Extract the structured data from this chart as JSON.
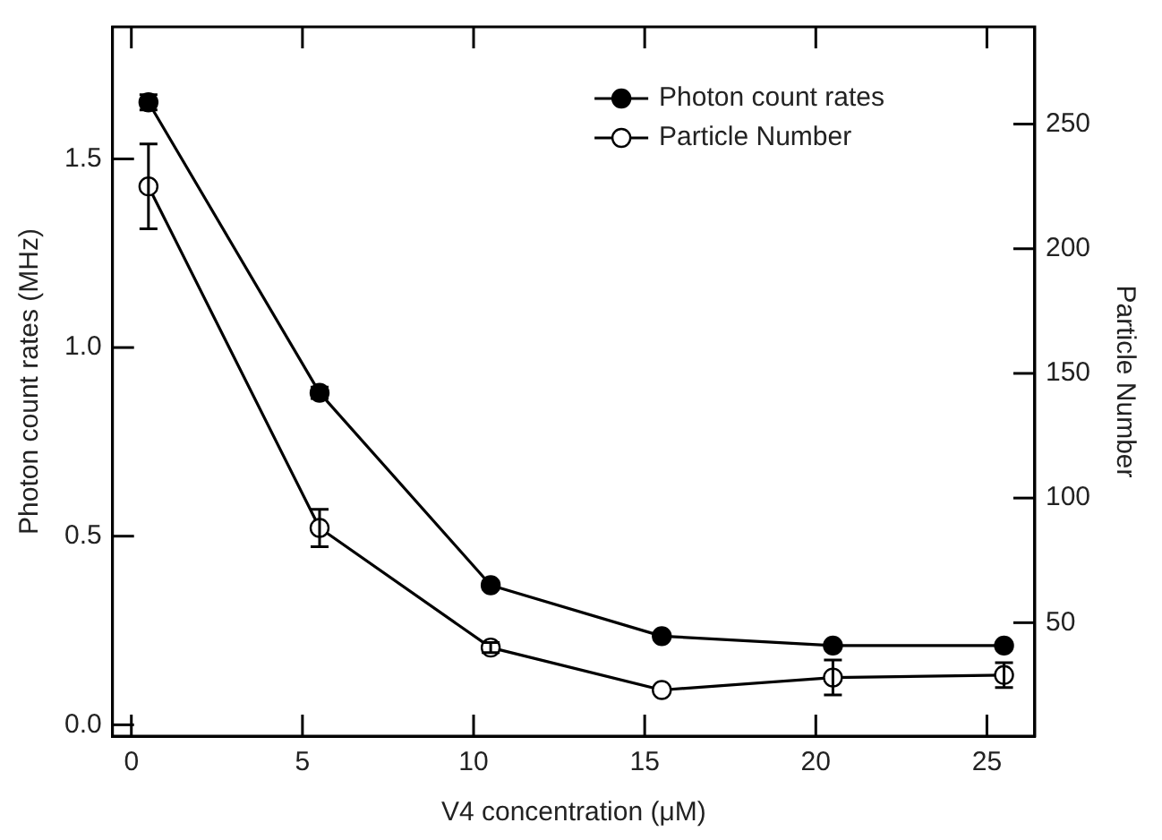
{
  "chart_data": {
    "type": "line",
    "xlabel": "V4 concentration (μM)",
    "ylabel": "Photon count rates (MHz)",
    "y2label": "Particle Number",
    "x": [
      0.5,
      5.5,
      10.5,
      15.5,
      20.5,
      25.5
    ],
    "series": [
      {
        "name": "Photon count rates",
        "color": "#000000",
        "values": [
          1.65,
          0.88,
          0.37,
          0.235,
          0.21,
          0.21
        ],
        "errors": [
          0.02,
          0.015,
          0.01,
          null,
          null,
          null
        ]
      },
      {
        "name": "Particle Number",
        "color": "#000000",
        "axis": "y2",
        "values": [
          225,
          88,
          40,
          23,
          28,
          29
        ],
        "errors": [
          17,
          7.5,
          2,
          null,
          7,
          5
        ]
      }
    ],
    "xlim": [
      -0.55,
      26.4
    ],
    "xticks": [
      0,
      5,
      10,
      15,
      20,
      25
    ],
    "ylim": [
      -0.03,
      1.85
    ],
    "yticks": [
      {
        "value": 0,
        "label": "0.0"
      },
      {
        "value": 0.5,
        "label": "0.5"
      },
      {
        "value": 1,
        "label": "1.0"
      },
      {
        "value": 1.5,
        "label": "1.5"
      }
    ],
    "y2lim": [
      4.5,
      289
    ],
    "y2ticks": [
      50,
      100,
      150,
      200,
      250
    ],
    "legend": "top right",
    "marker": "circle",
    "line_style": "solid",
    "grid": false
  }
}
